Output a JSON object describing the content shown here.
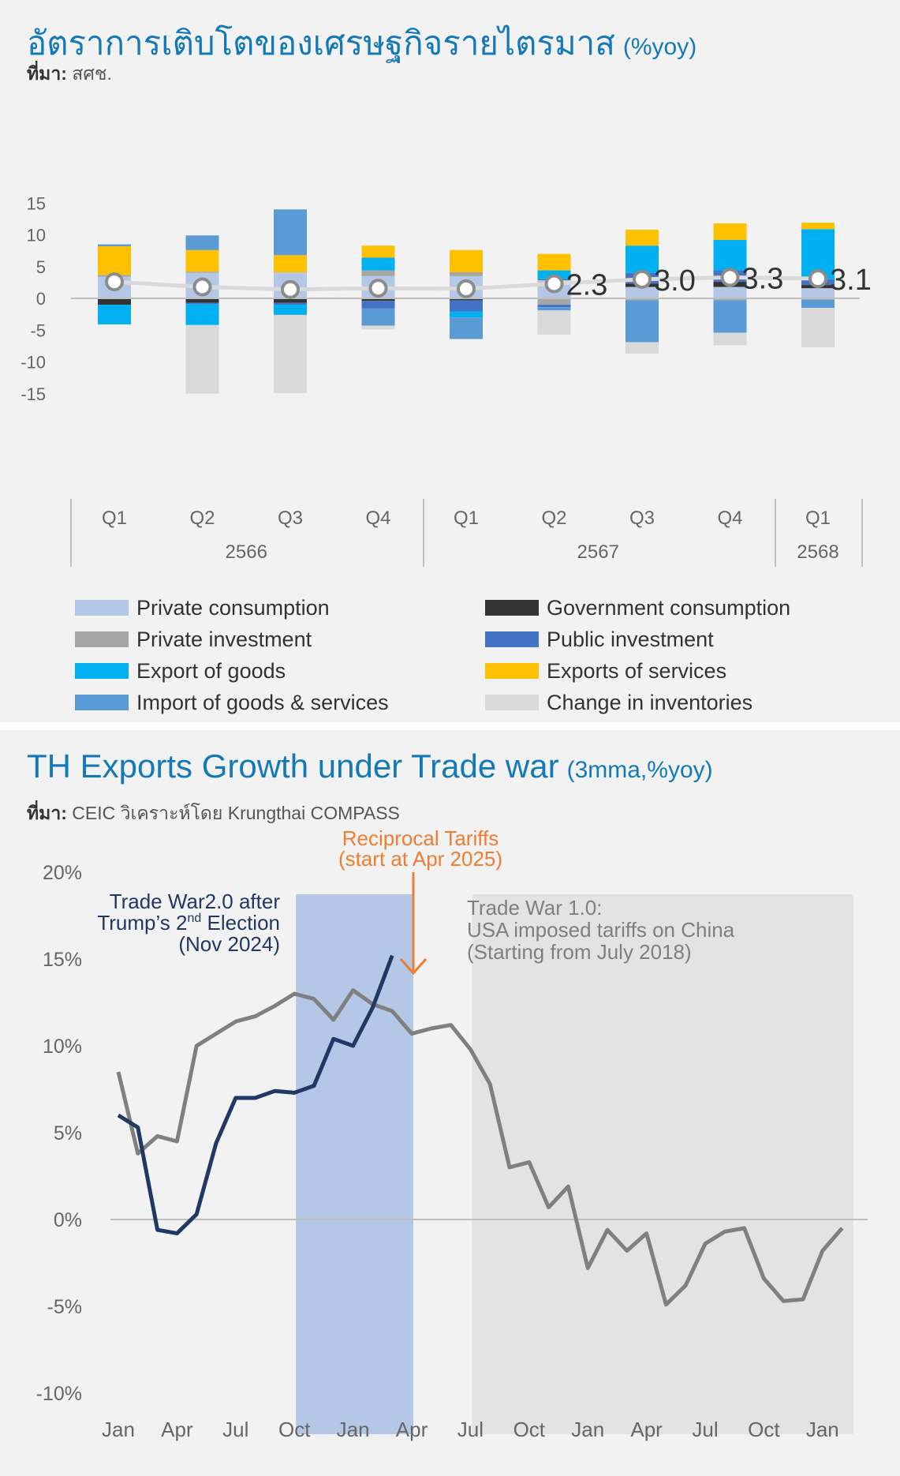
{
  "chart_data": [
    {
      "type": "bar",
      "title": "อัตราการเติบโตของเศรษฐกิจรายไตรมาส",
      "title_unit": "(%yoy)",
      "source_label": "ที่มา:",
      "source": "สศช.",
      "ylim": [
        -15,
        15
      ],
      "yticks": [
        "15",
        "10",
        "5",
        "0",
        "-5",
        "-10",
        "-15"
      ],
      "categories": [
        "Q1",
        "Q2",
        "Q3",
        "Q4",
        "Q1",
        "Q2",
        "Q3",
        "Q4",
        "Q1"
      ],
      "years": [
        {
          "label": "2566",
          "span": [
            0,
            3
          ]
        },
        {
          "label": "2567",
          "span": [
            4,
            7
          ]
        },
        {
          "label": "2568",
          "span": [
            8,
            8
          ]
        }
      ],
      "stacked": true,
      "series": [
        {
          "name": "Private consumption",
          "color": "#b4c7e7",
          "values": [
            3.4,
            4.0,
            4.1,
            3.5,
            3.5,
            2.9,
            1.8,
            1.8,
            1.6
          ]
        },
        {
          "name": "Government consumption",
          "color": "#333333",
          "values": [
            -1.0,
            -0.7,
            -0.7,
            -0.4,
            -0.3,
            0.1,
            0.5,
            0.8,
            0.5
          ]
        },
        {
          "name": "Private investment",
          "color": "#a6a6a6",
          "values": [
            0.3,
            0.2,
            0.0,
            0.9,
            0.6,
            -1.0,
            -0.3,
            -0.3,
            -0.2
          ]
        },
        {
          "name": "Public investment",
          "color": "#4472c4",
          "values": [
            0.0,
            -0.2,
            -0.3,
            -1.2,
            -1.8,
            -0.4,
            1.7,
            1.8,
            0.9
          ]
        },
        {
          "name": "Export of goods",
          "color": "#00b0f0",
          "values": [
            -3.1,
            -3.3,
            -1.6,
            2.0,
            -0.9,
            1.4,
            4.3,
            4.8,
            7.9
          ]
        },
        {
          "name": "Exports of services",
          "color": "#ffc000",
          "values": [
            4.5,
            3.4,
            2.7,
            1.9,
            3.5,
            2.6,
            2.5,
            2.6,
            1.0
          ]
        },
        {
          "name": "Import of goods & services",
          "color": "#5b9bd5",
          "values": [
            0.3,
            2.3,
            7.2,
            -2.7,
            -3.4,
            -0.5,
            -6.6,
            -5.1,
            -1.3
          ]
        },
        {
          "name": "Change in inventories",
          "color": "#d9d9d9",
          "values": [
            0.0,
            -10.8,
            -12.3,
            -0.6,
            0.0,
            -3.8,
            -1.8,
            -2.0,
            -6.2
          ]
        }
      ],
      "gdp_line": {
        "color": "#d9d9d9",
        "values": [
          2.6,
          1.8,
          1.4,
          1.6,
          1.5,
          2.3,
          3.0,
          3.3,
          3.1
        ]
      },
      "gdp_labels": [
        "",
        "",
        "",
        "",
        "",
        "2.3",
        "3.0",
        "3.3",
        "3.1"
      ]
    },
    {
      "type": "line",
      "title": "TH Exports Growth under Trade war",
      "title_unit": "(3mma,%yoy)",
      "source_label": "ที่มา:",
      "source": "CEIC วิเคราะห์โดย Krungthai COMPASS",
      "ylim": [
        -10,
        20
      ],
      "yticks": [
        "20%",
        "15%",
        "10%",
        "5%",
        "0%",
        "-5%",
        "-10%"
      ],
      "xticks": [
        "Jan",
        "Apr",
        "Jul",
        "Oct",
        "Jan",
        "Apr",
        "Jul",
        "Oct",
        "Jan",
        "Apr",
        "Jul",
        "Oct",
        "Jan"
      ],
      "series": [
        {
          "name": "Trade War 1.0",
          "color": "#808080",
          "values": [
            8.5,
            3.8,
            4.8,
            4.5,
            10.0,
            10.7,
            11.4,
            11.7,
            12.3,
            13.0,
            12.7,
            11.5,
            13.2,
            12.4,
            12.0,
            10.7,
            11.0,
            11.2,
            9.8,
            7.8,
            3.0,
            3.3,
            0.7,
            1.9,
            -2.8,
            -0.6,
            -1.8,
            -0.8,
            -4.9,
            -3.8,
            -1.4,
            -0.7,
            -0.5,
            -3.4,
            -4.7,
            -4.6,
            -1.8,
            -0.5
          ]
        },
        {
          "name": "Trade War 2.0",
          "color": "#1f3864",
          "values": [
            6.0,
            5.3,
            -0.6,
            -0.8,
            0.3,
            4.4,
            7.0,
            7.0,
            7.4,
            7.3,
            7.7,
            10.4,
            10.0,
            12.2,
            15.2
          ]
        }
      ],
      "shaded_regions": [
        {
          "label": "Trade War2.0 shade",
          "from": 9,
          "to": 15,
          "color": "#b4c7e7"
        },
        {
          "label": "Trade War1.0 shade",
          "from": 18,
          "to": 37.5,
          "color": "#e3e3e3"
        }
      ],
      "annotations": {
        "tw2_line1": "Trade War2.0 after",
        "tw2_line2a": "Trump’s 2",
        "tw2_sup": "nd",
        "tw2_line2b": " Election",
        "tw2_line3": "(Nov 2024)",
        "tariff_line1": "Reciprocal Tariffs",
        "tariff_line2": "(start at Apr 2025)",
        "tw1_line1": "Trade War 1.0:",
        "tw1_line2": "USA imposed tariffs on China",
        "tw1_line3": "(Starting from July 2018)"
      },
      "colors": {
        "tariff": "#ed7d31",
        "tw2": "#1f3864",
        "tw1": "#7f7f7f"
      }
    }
  ]
}
